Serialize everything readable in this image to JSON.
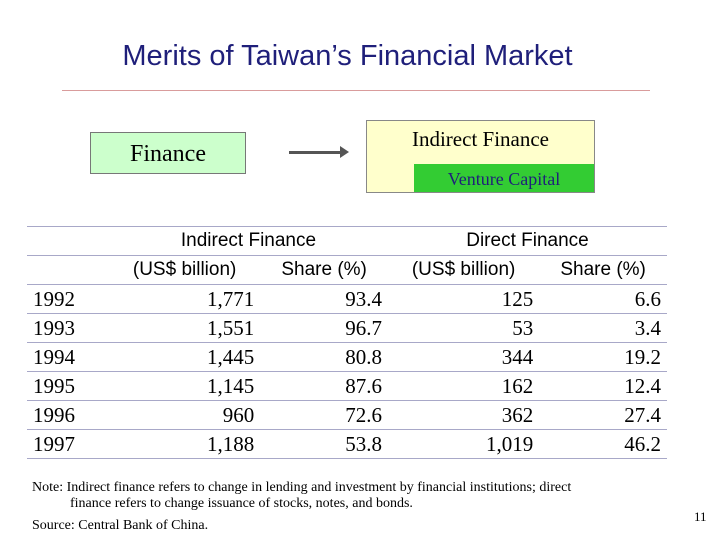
{
  "slide": {
    "title": "Merits of Taiwan’s Financial Market",
    "page_number": "11"
  },
  "diagram": {
    "finance_label": "Finance",
    "indirect_label": "Indirect Finance",
    "venture_label": "Venture Capital"
  },
  "table": {
    "header_groups": [
      "Indirect Finance",
      "Direct Finance"
    ],
    "header_columns": [
      "(US$ billion)",
      "Share (%)",
      "(US$ billion)",
      "Share (%)"
    ],
    "rows": [
      [
        "1992",
        "1,771",
        "93.4",
        "125",
        "6.6"
      ],
      [
        "1993",
        "1,551",
        "96.7",
        "53",
        "3.4"
      ],
      [
        "1994",
        "1,445",
        "80.8",
        "344",
        "19.2"
      ],
      [
        "1995",
        "1,145",
        "87.6",
        "162",
        "12.4"
      ],
      [
        "1996",
        "960",
        "72.6",
        "362",
        "27.4"
      ],
      [
        "1997",
        "1,188",
        "53.8",
        "1,019",
        "46.2"
      ]
    ]
  },
  "footer": {
    "note_line1": "Note: Indirect finance refers to change in lending and investment by financial institutions; direct",
    "note_line2": "finance refers to change issuance of stocks, notes, and bonds.",
    "source": "Source: Central Bank of China."
  }
}
